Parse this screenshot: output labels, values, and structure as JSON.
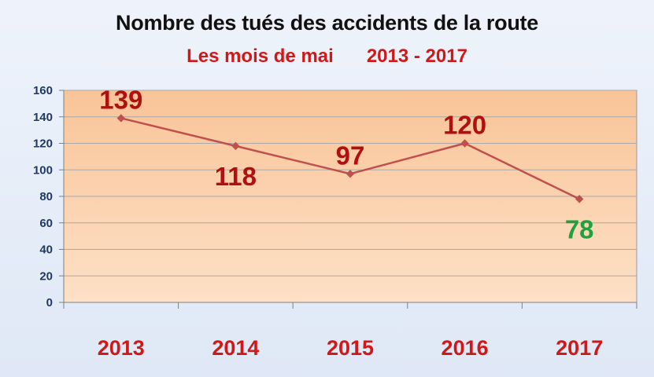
{
  "chart_data": {
    "type": "line",
    "title": "Nombre des tués des accidents de la route",
    "subtitle": {
      "left": "Les mois de mai",
      "right": "2013 - 2017"
    },
    "categories": [
      "2013",
      "2014",
      "2015",
      "2016",
      "2017"
    ],
    "series": [
      {
        "values": [
          139,
          118,
          97,
          120,
          78
        ],
        "color": "#c0504d"
      }
    ],
    "data_labels": [
      "139",
      "118",
      "97",
      "120",
      "78"
    ],
    "data_label_colors": [
      "#b01010",
      "#b01010",
      "#b01010",
      "#b01010",
      "#22a040"
    ],
    "ylim": [
      0,
      160
    ],
    "yticks": [
      "0",
      "20",
      "40",
      "60",
      "80",
      "100",
      "120",
      "140",
      "160"
    ],
    "grid": true,
    "colors": {
      "plot_background": "#fbd0ac",
      "grid": "#a8a8a8",
      "ytick_text": "#1f3864",
      "xtick_text": "#d01818"
    }
  }
}
